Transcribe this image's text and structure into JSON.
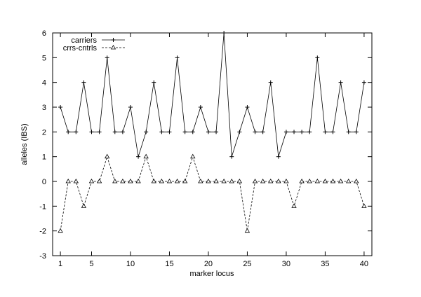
{
  "chart_data": {
    "type": "line",
    "xlabel": "marker locus",
    "ylabel": "alleles (IBS)",
    "xlim": [
      0,
      41
    ],
    "ylim": [
      -3,
      6
    ],
    "xticks": [
      1,
      5,
      10,
      15,
      20,
      25,
      30,
      35,
      40
    ],
    "yticks": [
      -3,
      -2,
      -1,
      0,
      1,
      2,
      3,
      4,
      5,
      6
    ],
    "legend_position": "top-left",
    "grid": false,
    "x": [
      1,
      2,
      3,
      4,
      5,
      6,
      7,
      8,
      9,
      10,
      11,
      12,
      13,
      14,
      15,
      16,
      17,
      18,
      19,
      20,
      21,
      22,
      23,
      24,
      25,
      26,
      27,
      28,
      29,
      30,
      31,
      32,
      33,
      34,
      35,
      36,
      37,
      38,
      39,
      40
    ],
    "series": [
      {
        "name": "carriers",
        "marker": "plus",
        "style": "solid",
        "values": [
          3,
          2,
          2,
          4,
          2,
          2,
          5,
          2,
          2,
          3,
          1,
          2,
          4,
          2,
          2,
          5,
          2,
          2,
          3,
          2,
          2,
          6,
          1,
          2,
          3,
          2,
          2,
          4,
          1,
          2,
          2,
          2,
          2,
          5,
          2,
          2,
          4,
          2,
          2,
          4
        ]
      },
      {
        "name": "crrs-cntrls",
        "marker": "triangle",
        "style": "dashed",
        "values": [
          -2,
          0,
          0,
          -1,
          0,
          0,
          1,
          0,
          0,
          0,
          0,
          1,
          0,
          0,
          0,
          0,
          0,
          1,
          0,
          0,
          0,
          0,
          0,
          0,
          -2,
          0,
          0,
          0,
          0,
          0,
          -1,
          0,
          0,
          0,
          0,
          0,
          0,
          0,
          0,
          -1
        ]
      }
    ]
  }
}
